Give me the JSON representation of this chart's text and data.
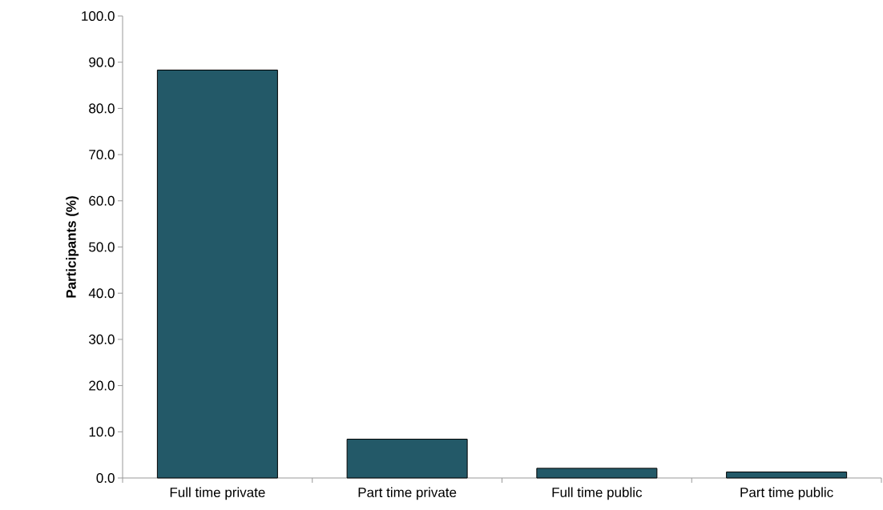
{
  "chart_data": {
    "type": "bar",
    "ylabel": "Participants (%)",
    "categories": [
      "Full time private",
      "Part time private",
      "Full time public",
      "Part time public"
    ],
    "values": [
      88.3,
      8.4,
      2.1,
      1.3
    ],
    "color": "#235968",
    "ylim": [
      0,
      100
    ],
    "yticks": [
      {
        "value": 0,
        "label": "0.0"
      },
      {
        "value": 10,
        "label": "10.0"
      },
      {
        "value": 20,
        "label": "20.0"
      },
      {
        "value": 30,
        "label": "30.0"
      },
      {
        "value": 40,
        "label": "40.0"
      },
      {
        "value": 50,
        "label": "50.0"
      },
      {
        "value": 60,
        "label": "60.0"
      },
      {
        "value": 70,
        "label": "70.0"
      },
      {
        "value": 80,
        "label": "80.0"
      },
      {
        "value": 90,
        "label": "90.0"
      },
      {
        "value": 100,
        "label": "100.0"
      }
    ]
  }
}
